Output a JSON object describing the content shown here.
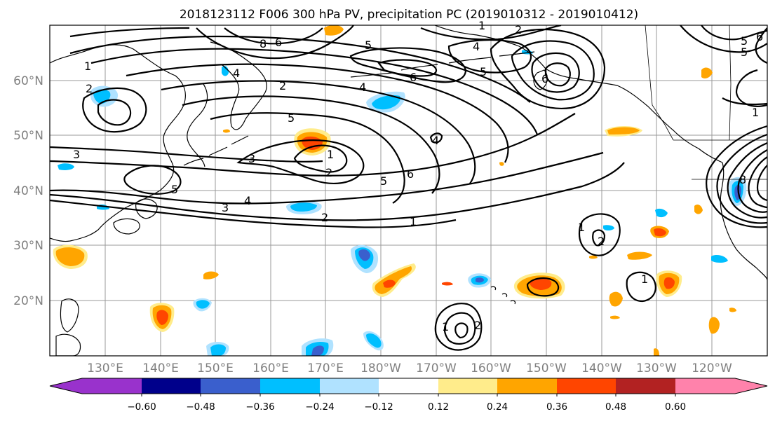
{
  "title": "2018123112 F006 300 hPa PV, precipitation PC (2019010312 - 2019010412)",
  "lat_labels": [
    "60°N",
    "50°N",
    "40°N",
    "30°N",
    "20°N"
  ],
  "lon_labels": [
    "130°E",
    "140°E",
    "150°E",
    "160°E",
    "170°E",
    "180°W",
    "170°W",
    "160°W",
    "150°W",
    "140°W",
    "130°W",
    "120°W"
  ],
  "colorbar": {
    "ticks": [
      "−0.60",
      "−0.48",
      "−0.36",
      "−0.24",
      "−0.12",
      "0.12",
      "0.24",
      "0.36",
      "0.48",
      "0.60"
    ],
    "colors": [
      "#9932cc",
      "#00008b",
      "#3a5fcd",
      "#00bfff",
      "#b0e2ff",
      "#ffffff",
      "#ffec8b",
      "#ffa500",
      "#ff4500",
      "#b22222",
      "#ff82ab"
    ]
  },
  "pv_labels": {
    "a": "1",
    "b": "2",
    "c": "3",
    "d": "4",
    "e": "5",
    "f": "6",
    "g": "3",
    "h": "2",
    "i": "1",
    "j": "1",
    "k": "2",
    "l": "1",
    "m": "4",
    "n": "6",
    "o": "5",
    "p": "4",
    "q": "2",
    "r": "5",
    "s": "1",
    "t": "2",
    "u": "1",
    "v": "1",
    "w": "6",
    "x": "5",
    "y": "1",
    "z": "4",
    "aa": "6",
    "ab": "8",
    "ac": "5",
    "ad": "3"
  },
  "colors": {
    "neg_light": "#b0e2ff",
    "neg_mid": "#00bfff",
    "neg_strong": "#3a5fcd",
    "pos_light": "#ffec8b",
    "pos_mid": "#ffa500",
    "pos_strong": "#ff4500",
    "gridline": "#999999"
  }
}
